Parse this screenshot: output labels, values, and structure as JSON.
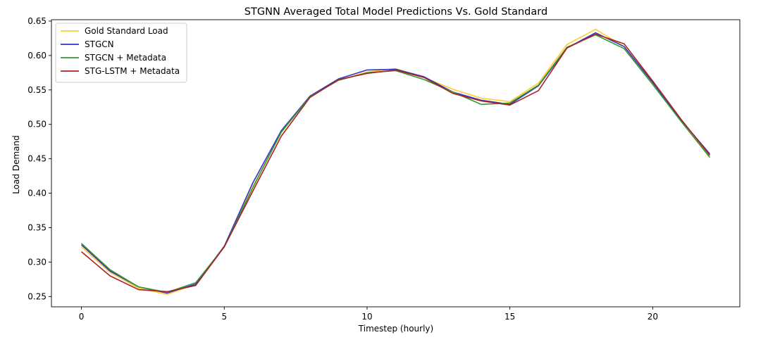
{
  "chart_data": {
    "type": "line",
    "title": "STGNN Averaged Total Model Predictions Vs. Gold Standard",
    "xlabel": "Timestep (hourly)",
    "ylabel": "Load Demand",
    "xlim": [
      -1.05,
      23.05
    ],
    "ylim": [
      0.235,
      0.652
    ],
    "xticks": [
      0,
      5,
      10,
      15,
      20
    ],
    "xtick_labels": [
      "0",
      "5",
      "10",
      "15",
      "20"
    ],
    "yticks": [
      0.25,
      0.3,
      0.35,
      0.4,
      0.45,
      0.5,
      0.55,
      0.6,
      0.65
    ],
    "ytick_labels": [
      "0.25",
      "0.30",
      "0.35",
      "0.40",
      "0.45",
      "0.50",
      "0.55",
      "0.60",
      "0.65"
    ],
    "grid": false,
    "legend_position": "top-left",
    "x": [
      0,
      1,
      2,
      3,
      4,
      5,
      6,
      7,
      8,
      9,
      10,
      11,
      12,
      13,
      14,
      15,
      16,
      17,
      18,
      19,
      20,
      21,
      22
    ],
    "series": [
      {
        "name": "Gold Standard Load",
        "color": "#ffcc33",
        "values": [
          0.322,
          0.285,
          0.262,
          0.253,
          0.268,
          0.322,
          0.41,
          0.488,
          0.541,
          0.564,
          0.576,
          0.581,
          0.568,
          0.551,
          0.538,
          0.533,
          0.56,
          0.616,
          0.638,
          0.613,
          0.559,
          0.505,
          0.452
        ]
      },
      {
        "name": "STGCN",
        "color": "#3333cc",
        "values": [
          0.325,
          0.287,
          0.264,
          0.255,
          0.268,
          0.323,
          0.415,
          0.491,
          0.541,
          0.566,
          0.579,
          0.58,
          0.569,
          0.547,
          0.535,
          0.529,
          0.556,
          0.611,
          0.633,
          0.613,
          0.561,
          0.506,
          0.457
        ]
      },
      {
        "name": "STGCN + Metadata",
        "color": "#339933",
        "values": [
          0.327,
          0.289,
          0.264,
          0.256,
          0.27,
          0.322,
          0.408,
          0.489,
          0.54,
          0.564,
          0.575,
          0.578,
          0.565,
          0.547,
          0.529,
          0.531,
          0.557,
          0.612,
          0.63,
          0.61,
          0.558,
          0.504,
          0.452
        ]
      },
      {
        "name": "STG-LSTM + Metadata",
        "color": "#aa2222",
        "values": [
          0.315,
          0.28,
          0.26,
          0.257,
          0.266,
          0.322,
          0.403,
          0.483,
          0.539,
          0.565,
          0.574,
          0.579,
          0.568,
          0.545,
          0.534,
          0.528,
          0.549,
          0.611,
          0.631,
          0.617,
          0.563,
          0.507,
          0.455
        ]
      }
    ]
  }
}
